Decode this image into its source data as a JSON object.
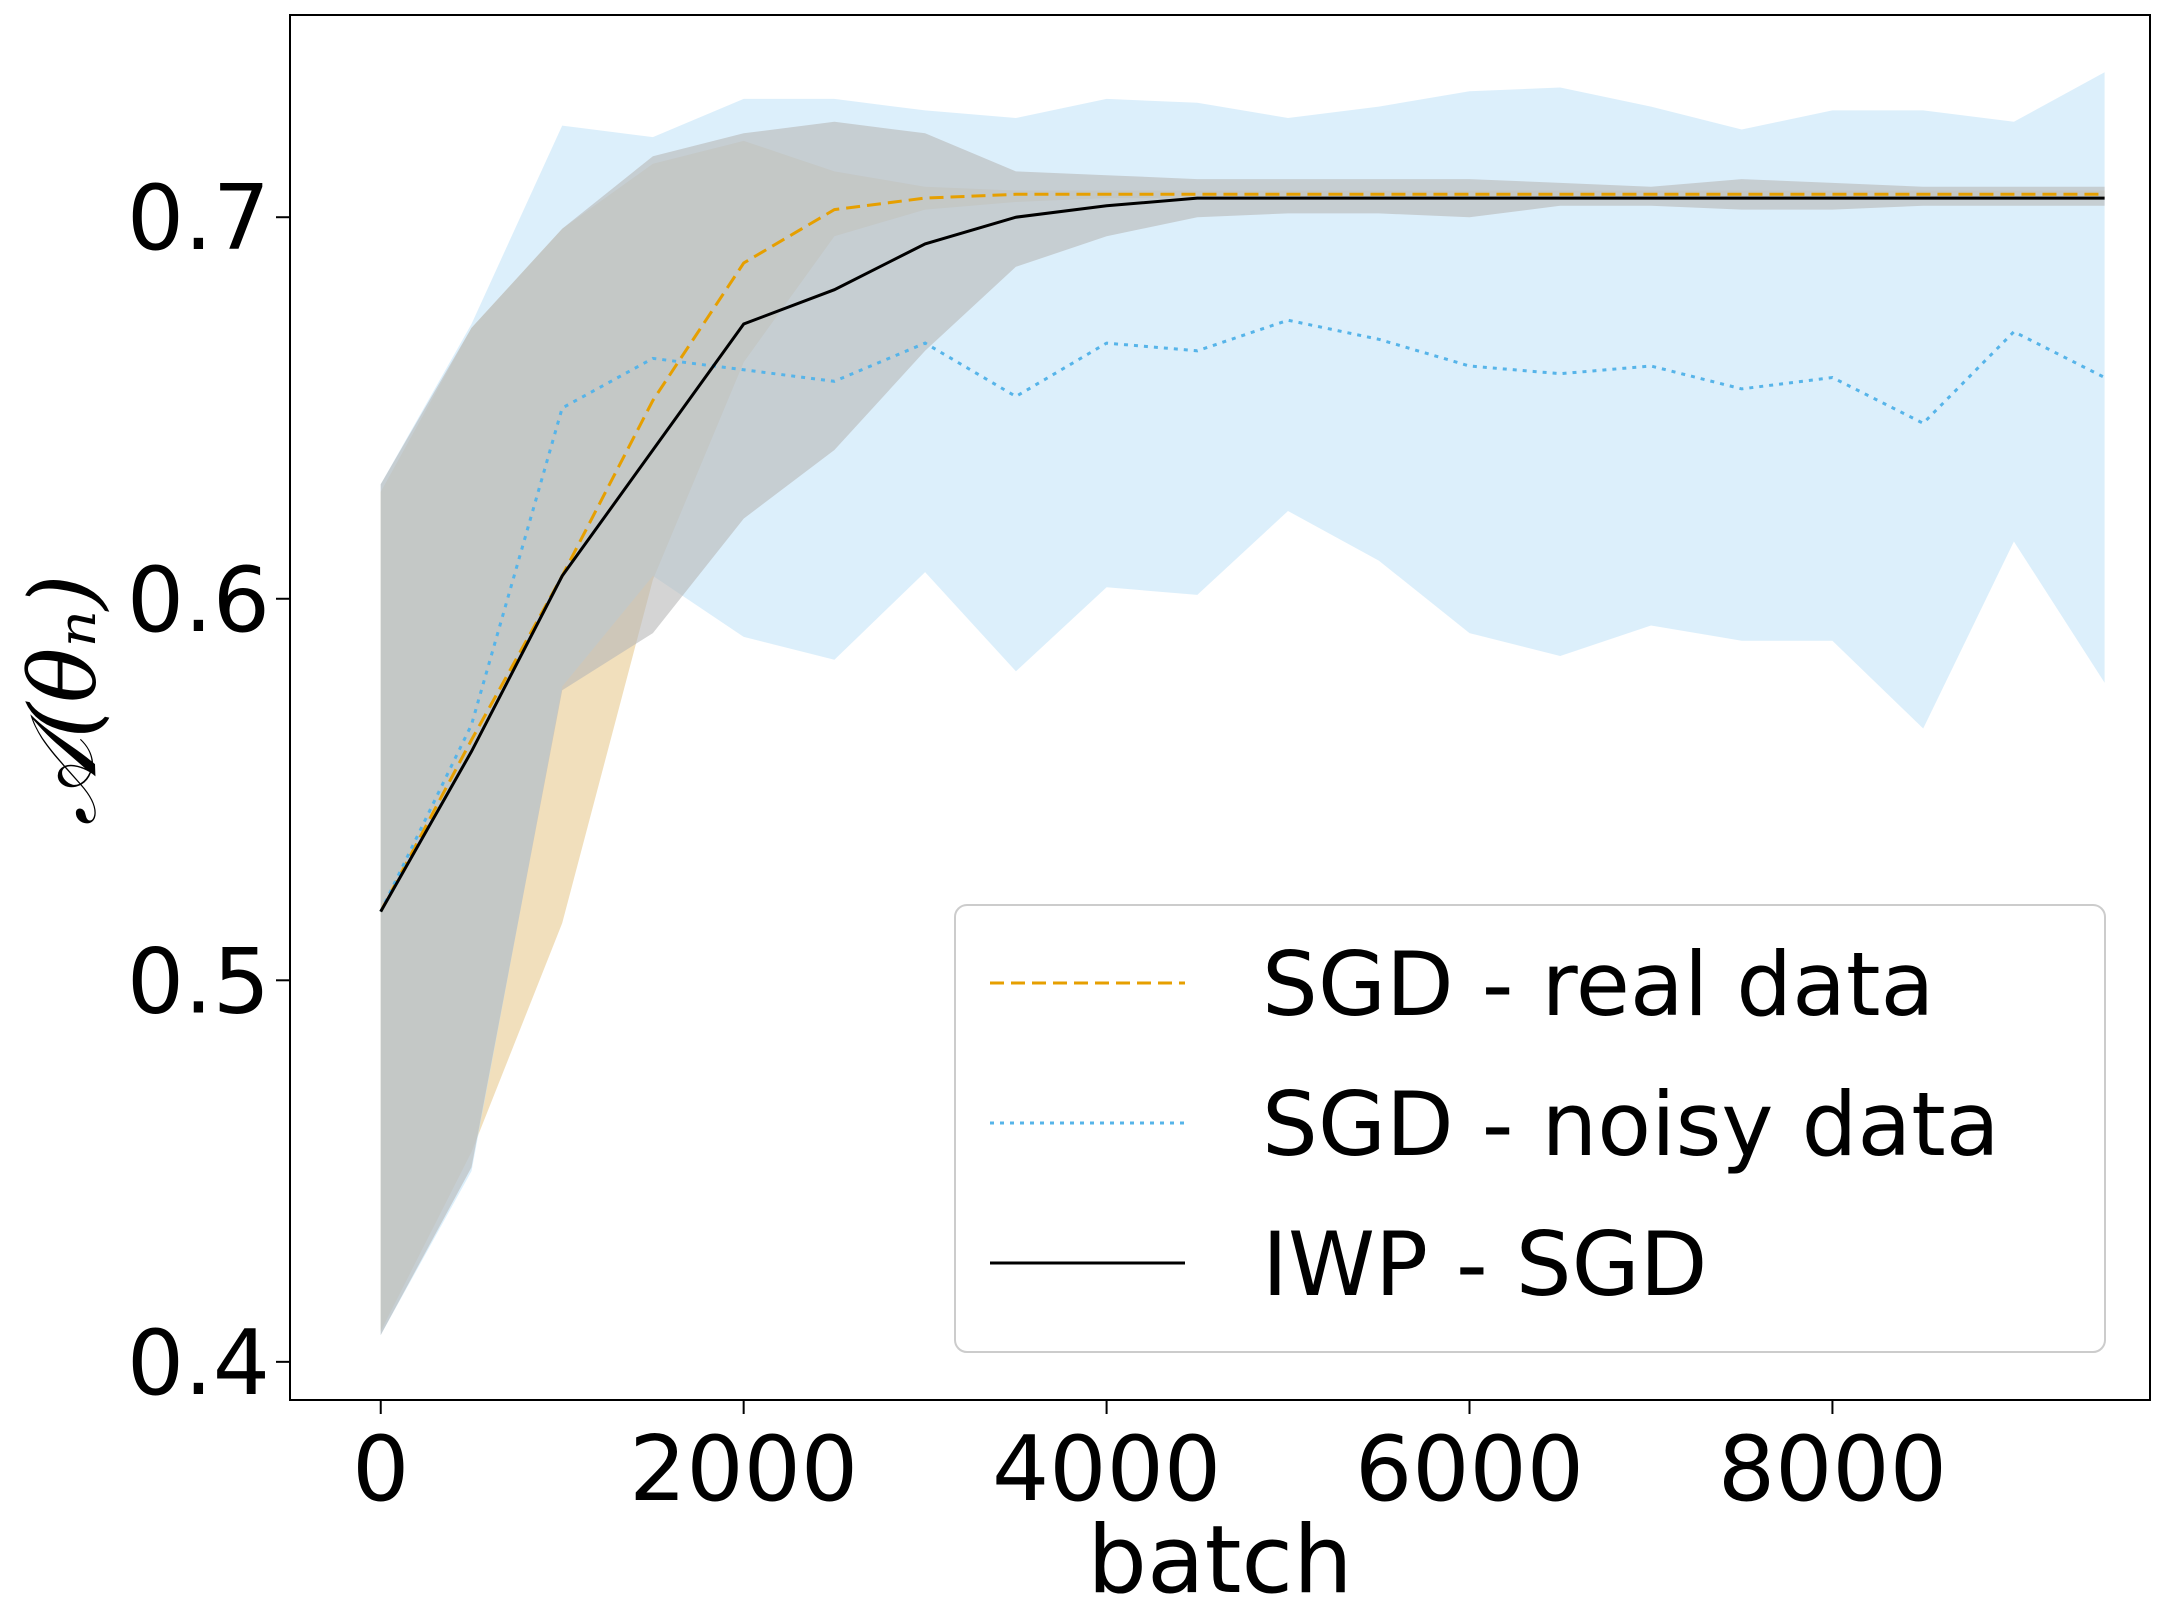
{
  "chart_data": {
    "type": "line",
    "xlabel": "batch",
    "ylabel": "𝒜(θₙ)",
    "xlim": [
      -500,
      9750
    ],
    "ylim": [
      0.39,
      0.753
    ],
    "xticks": [
      0,
      2000,
      4000,
      6000,
      8000
    ],
    "yticks": [
      0.4,
      0.5,
      0.6,
      0.7
    ],
    "legend_position": "lower-right",
    "grid": false,
    "x": [
      0,
      500,
      1000,
      1500,
      2000,
      2500,
      3000,
      3500,
      4000,
      4500,
      5000,
      5500,
      6000,
      6500,
      7000,
      7500,
      8000,
      8500,
      9000,
      9500
    ],
    "series": [
      {
        "name": "SGD - real data",
        "color": "#e69f00",
        "fill": "#e8c98f",
        "style": "dashed",
        "values": [
          0.518,
          0.563,
          0.606,
          0.652,
          0.688,
          0.702,
          0.705,
          0.706,
          0.706,
          0.706,
          0.706,
          0.706,
          0.706,
          0.706,
          0.706,
          0.706,
          0.706,
          0.706,
          0.706,
          0.706
        ],
        "lower": [
          0.408,
          0.455,
          0.515,
          0.605,
          0.662,
          0.695,
          0.702,
          0.704,
          0.705,
          0.705,
          0.705,
          0.705,
          0.705,
          0.705,
          0.705,
          0.705,
          0.705,
          0.705,
          0.705,
          0.705
        ],
        "upper": [
          0.628,
          0.671,
          0.697,
          0.714,
          0.72,
          0.712,
          0.708,
          0.707,
          0.707,
          0.707,
          0.707,
          0.707,
          0.707,
          0.707,
          0.707,
          0.707,
          0.707,
          0.707,
          0.707,
          0.707
        ]
      },
      {
        "name": "SGD - noisy data",
        "color": "#56b4e9",
        "fill": "#bfe2f7",
        "style": "dotted",
        "values": [
          0.518,
          0.567,
          0.65,
          0.663,
          0.66,
          0.657,
          0.667,
          0.653,
          0.667,
          0.665,
          0.673,
          0.668,
          0.661,
          0.659,
          0.661,
          0.655,
          0.658,
          0.646,
          0.67,
          0.658
        ],
        "lower": [
          0.407,
          0.45,
          0.577,
          0.606,
          0.59,
          0.584,
          0.607,
          0.581,
          0.603,
          0.601,
          0.623,
          0.61,
          0.591,
          0.585,
          0.593,
          0.589,
          0.589,
          0.566,
          0.615,
          0.578
        ],
        "upper": [
          0.63,
          0.672,
          0.724,
          0.721,
          0.731,
          0.731,
          0.728,
          0.726,
          0.731,
          0.73,
          0.726,
          0.729,
          0.733,
          0.734,
          0.729,
          0.723,
          0.728,
          0.728,
          0.725,
          0.738
        ]
      },
      {
        "name": "IWP - SGD",
        "color": "#000000",
        "fill": "#b8b8b8",
        "style": "solid",
        "values": [
          0.518,
          0.56,
          0.606,
          0.639,
          0.672,
          0.681,
          0.693,
          0.7,
          0.703,
          0.705,
          0.705,
          0.705,
          0.705,
          0.705,
          0.705,
          0.705,
          0.705,
          0.705,
          0.705,
          0.705
        ],
        "lower": [
          0.407,
          0.451,
          0.576,
          0.591,
          0.621,
          0.639,
          0.665,
          0.687,
          0.695,
          0.7,
          0.701,
          0.701,
          0.7,
          0.703,
          0.703,
          0.702,
          0.702,
          0.703,
          0.703,
          0.703
        ],
        "upper": [
          0.63,
          0.671,
          0.697,
          0.716,
          0.722,
          0.725,
          0.722,
          0.712,
          0.711,
          0.71,
          0.71,
          0.71,
          0.71,
          0.709,
          0.708,
          0.71,
          0.709,
          0.708,
          0.708,
          0.708
        ]
      }
    ]
  }
}
